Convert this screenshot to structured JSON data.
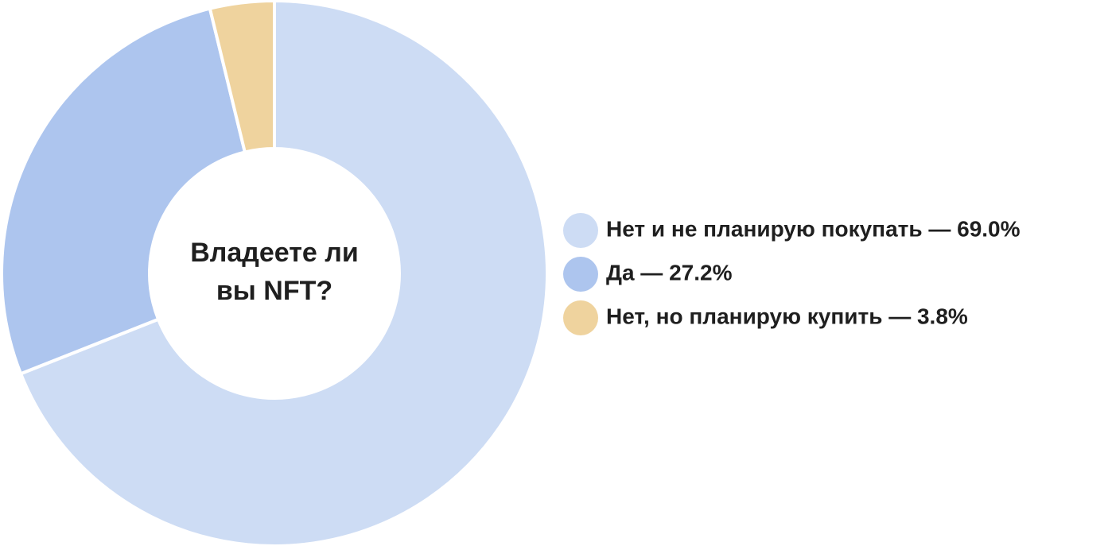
{
  "chart_data": {
    "type": "donut",
    "title": "Владеете ли вы NFT?",
    "categories": [
      "Нет и не планирую покупать — 69.0%",
      "Да — 27.2%",
      "Нет, но планирую купить — 3.8%"
    ],
    "values": [
      69.0,
      27.2,
      3.8
    ],
    "colors": [
      "#cddcf4",
      "#adc5ee",
      "#efd39e"
    ],
    "legend": "right"
  }
}
